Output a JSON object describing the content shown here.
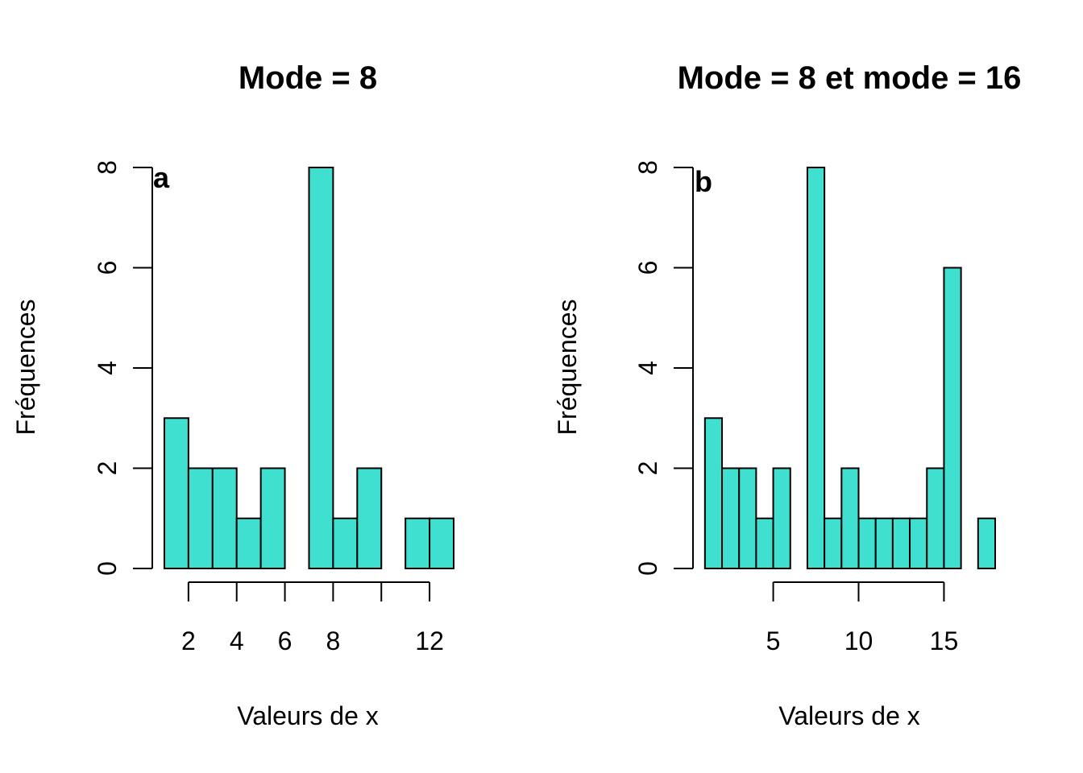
{
  "chart_data": [
    {
      "type": "bar",
      "title": "Mode = 8",
      "panel_label": "a",
      "xlabel": "Valeurs de x",
      "ylabel": "Fréquences",
      "bar_color": "#40E0D0",
      "bins": [
        {
          "x0": 1,
          "x1": 2,
          "count": 3
        },
        {
          "x0": 2,
          "x1": 3,
          "count": 2
        },
        {
          "x0": 3,
          "x1": 4,
          "count": 2
        },
        {
          "x0": 4,
          "x1": 5,
          "count": 1
        },
        {
          "x0": 5,
          "x1": 6,
          "count": 2
        },
        {
          "x0": 6,
          "x1": 7,
          "count": 0
        },
        {
          "x0": 7,
          "x1": 8,
          "count": 8
        },
        {
          "x0": 8,
          "x1": 9,
          "count": 1
        },
        {
          "x0": 9,
          "x1": 10,
          "count": 2
        },
        {
          "x0": 10,
          "x1": 11,
          "count": 0
        },
        {
          "x0": 11,
          "x1": 12,
          "count": 1
        },
        {
          "x0": 12,
          "x1": 13,
          "count": 1
        }
      ],
      "xlim": [
        0.5,
        13
      ],
      "ylim": [
        0,
        8
      ],
      "x_axis_range": [
        2,
        12
      ],
      "x_ticks": [
        2,
        4,
        6,
        8,
        12
      ],
      "x_tick_labels": [
        "2",
        "4",
        "6",
        "8",
        "12"
      ],
      "x_minor_ticks": [
        10
      ],
      "y_ticks": [
        0,
        2,
        4,
        6,
        8
      ],
      "y_tick_labels": [
        "0",
        "2",
        "4",
        "6",
        "8"
      ],
      "grid": false
    },
    {
      "type": "bar",
      "title": "Mode = 8 et mode = 16",
      "panel_label": "b",
      "xlabel": "Valeurs de x",
      "ylabel": "Fréquences",
      "bar_color": "#40E0D0",
      "bins": [
        {
          "x0": 1,
          "x1": 2,
          "count": 3
        },
        {
          "x0": 2,
          "x1": 3,
          "count": 2
        },
        {
          "x0": 3,
          "x1": 4,
          "count": 2
        },
        {
          "x0": 4,
          "x1": 5,
          "count": 1
        },
        {
          "x0": 5,
          "x1": 6,
          "count": 2
        },
        {
          "x0": 6,
          "x1": 7,
          "count": 0
        },
        {
          "x0": 7,
          "x1": 8,
          "count": 8
        },
        {
          "x0": 8,
          "x1": 9,
          "count": 1
        },
        {
          "x0": 9,
          "x1": 10,
          "count": 2
        },
        {
          "x0": 10,
          "x1": 11,
          "count": 1
        },
        {
          "x0": 11,
          "x1": 12,
          "count": 1
        },
        {
          "x0": 12,
          "x1": 13,
          "count": 1
        },
        {
          "x0": 13,
          "x1": 14,
          "count": 1
        },
        {
          "x0": 14,
          "x1": 15,
          "count": 2
        },
        {
          "x0": 15,
          "x1": 16,
          "count": 6
        },
        {
          "x0": 16,
          "x1": 17,
          "count": 0
        },
        {
          "x0": 17,
          "x1": 18,
          "count": 1
        }
      ],
      "xlim": [
        0.3,
        18
      ],
      "ylim": [
        0,
        8
      ],
      "x_axis_range": [
        5,
        15
      ],
      "x_ticks": [
        5,
        10,
        15
      ],
      "x_tick_labels": [
        "5",
        "10",
        "15"
      ],
      "x_minor_ticks": [],
      "y_ticks": [
        0,
        2,
        4,
        6,
        8
      ],
      "y_tick_labels": [
        "0",
        "2",
        "4",
        "6",
        "8"
      ],
      "grid": false
    }
  ]
}
